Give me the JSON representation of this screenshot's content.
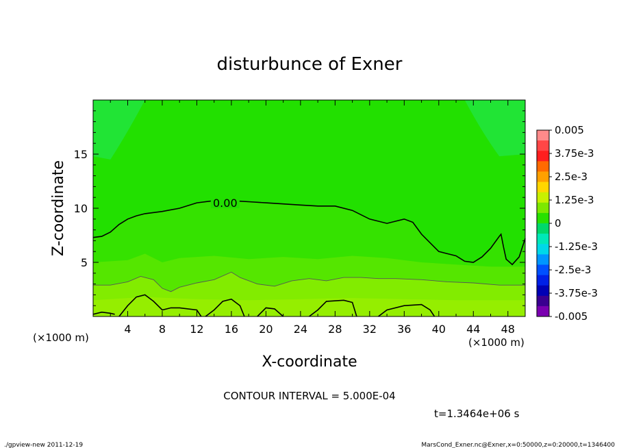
{
  "chart_data": {
    "type": "heatmap",
    "title": "disturbunce of Exner",
    "xlabel": "X-coordinate",
    "ylabel": "Z-coordinate",
    "x_unit": "(×1000 m)",
    "y_unit": "(×1000 m)",
    "xlim": [
      0,
      50
    ],
    "ylim": [
      0,
      20
    ],
    "x_ticks": [
      4,
      8,
      12,
      16,
      20,
      24,
      28,
      32,
      36,
      40,
      44,
      48
    ],
    "y_ticks": [
      5,
      10,
      15
    ],
    "contour_interval_text": "CONTOUR INTERVAL = 5.000E-04",
    "time_text": "t=1.3464e+06 s",
    "contour_labels": [
      {
        "text": "0.00",
        "x": 15.2,
        "z": 10.5
      }
    ],
    "colorbar": {
      "labels": [
        "0.005",
        "3.75e-3",
        "2.5e-3",
        "1.25e-3",
        "0",
        "-1.25e-3",
        "-2.5e-3",
        "-3.75e-3",
        "-0.005"
      ],
      "range": [
        -0.005,
        0.005
      ],
      "colors": [
        "#ff8a8a",
        "#ff4646",
        "#ff1e1e",
        "#ff6a00",
        "#ffa000",
        "#ffd600",
        "#c8f000",
        "#7de800",
        "#28e000",
        "#00d86a",
        "#00e8b8",
        "#00d8e8",
        "#0096ff",
        "#0050ff",
        "#0020e6",
        "#0000b4",
        "#3a0090",
        "#7a00b0"
      ]
    },
    "fill_regions": [
      {
        "level": "-0.0005",
        "color": "#20e860",
        "description": "upper corners"
      },
      {
        "level": "0.0000",
        "color": "#22e000"
      },
      {
        "level": "0.0005",
        "color": "#5ae600"
      },
      {
        "level": "0.0010",
        "color": "#82ec00"
      },
      {
        "level": "0.0015",
        "color": "#9cf000"
      }
    ],
    "zero_contour": [
      [
        0,
        7.3
      ],
      [
        1,
        7.4
      ],
      [
        2,
        7.8
      ],
      [
        3,
        8.5
      ],
      [
        4,
        9.0
      ],
      [
        5,
        9.3
      ],
      [
        6,
        9.5
      ],
      [
        8,
        9.7
      ],
      [
        10,
        10.0
      ],
      [
        12,
        10.5
      ],
      [
        14,
        10.7
      ],
      [
        16,
        10.7
      ],
      [
        18,
        10.6
      ],
      [
        20,
        10.5
      ],
      [
        22,
        10.4
      ],
      [
        24,
        10.3
      ],
      [
        26,
        10.2
      ],
      [
        28,
        10.2
      ],
      [
        30,
        9.8
      ],
      [
        32,
        9.0
      ],
      [
        34,
        8.6
      ],
      [
        36,
        9.0
      ],
      [
        37,
        8.7
      ],
      [
        38,
        7.6
      ],
      [
        39,
        6.8
      ],
      [
        40,
        6.0
      ],
      [
        41,
        5.8
      ],
      [
        42,
        5.6
      ],
      [
        43,
        5.1
      ],
      [
        44,
        5.0
      ],
      [
        45,
        5.5
      ],
      [
        46,
        6.3
      ],
      [
        47,
        7.4
      ],
      [
        47.2,
        7.6
      ],
      [
        47.5,
        6.4
      ],
      [
        47.8,
        5.3
      ],
      [
        48.5,
        4.8
      ],
      [
        49.3,
        5.5
      ],
      [
        50,
        7.2
      ]
    ],
    "lower_contour": [
      [
        0,
        2.9
      ],
      [
        2,
        2.9
      ],
      [
        4,
        3.2
      ],
      [
        5.5,
        3.7
      ],
      [
        7,
        3.4
      ],
      [
        8,
        2.6
      ],
      [
        9,
        2.3
      ],
      [
        10,
        2.7
      ],
      [
        12,
        3.1
      ],
      [
        14,
        3.4
      ],
      [
        16,
        4.1
      ],
      [
        17,
        3.6
      ],
      [
        19,
        3.0
      ],
      [
        21,
        2.8
      ],
      [
        23,
        3.3
      ],
      [
        25,
        3.5
      ],
      [
        27,
        3.3
      ],
      [
        29,
        3.6
      ],
      [
        31,
        3.6
      ],
      [
        33,
        3.5
      ],
      [
        35,
        3.5
      ],
      [
        38,
        3.4
      ],
      [
        41,
        3.2
      ],
      [
        44,
        3.1
      ],
      [
        47,
        2.9
      ],
      [
        50,
        2.9
      ]
    ],
    "bottom_contours": [
      [
        [
          0,
          0.2
        ],
        [
          1,
          0.4
        ],
        [
          2,
          0.3
        ],
        [
          2.5,
          0.2
        ]
      ],
      [
        [
          3,
          0
        ],
        [
          4,
          1.0
        ],
        [
          5,
          1.8
        ],
        [
          6,
          2.0
        ],
        [
          7,
          1.4
        ],
        [
          8,
          0.6
        ],
        [
          9,
          0.8
        ],
        [
          10,
          0.8
        ],
        [
          12,
          0.6
        ],
        [
          12.5,
          0
        ]
      ],
      [
        [
          13,
          0
        ],
        [
          14,
          0.6
        ],
        [
          15,
          1.4
        ],
        [
          16,
          1.6
        ],
        [
          17,
          1.0
        ],
        [
          17.5,
          0
        ]
      ],
      [
        [
          19,
          0
        ],
        [
          20,
          0.8
        ],
        [
          21,
          0.7
        ],
        [
          22,
          0
        ]
      ],
      [
        [
          25,
          0
        ],
        [
          26,
          0.6
        ],
        [
          27,
          1.4
        ],
        [
          29,
          1.5
        ],
        [
          30,
          1.3
        ],
        [
          30.5,
          0
        ]
      ],
      [
        [
          33,
          0
        ],
        [
          34,
          0.6
        ],
        [
          36,
          1.0
        ],
        [
          38,
          1.1
        ],
        [
          39,
          0.6
        ],
        [
          39.5,
          0
        ]
      ]
    ]
  },
  "footer": {
    "left": "./gpview-new  2011-12-19",
    "right": "MarsCond_Exner.nc@Exner,x=0:50000,z=0:20000,t=1346400"
  }
}
